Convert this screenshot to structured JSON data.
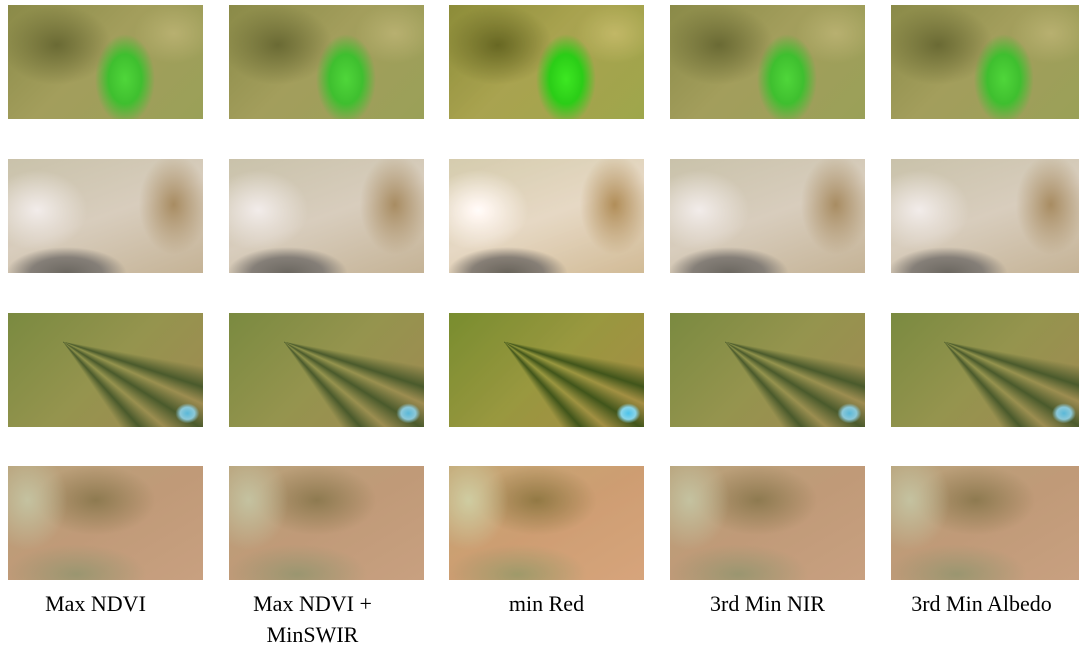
{
  "columns": [
    {
      "label": "Max NDVI"
    },
    {
      "label": "Max NDVI + MinSWIR"
    },
    {
      "label": "min Red"
    },
    {
      "label": "3rd Min NIR"
    },
    {
      "label": "3rd Min Albedo"
    }
  ]
}
